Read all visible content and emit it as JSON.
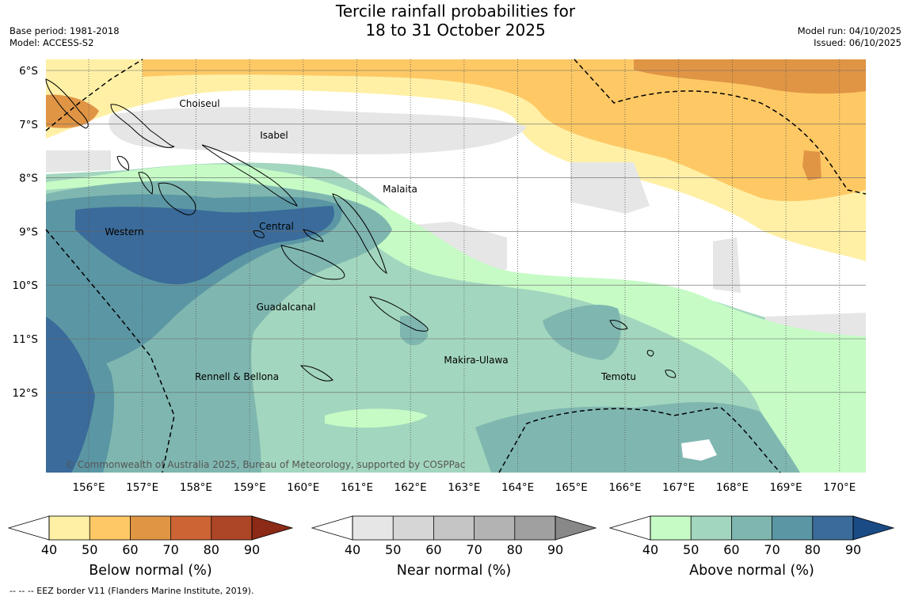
{
  "title_line1": "Tercile rainfall probabilities for",
  "title_line2": "18 to 31 October 2025",
  "meta_left": {
    "line1": "Base period: 1981-2018",
    "line2": "Model: ACCESS-S2"
  },
  "meta_right": {
    "line1": "Model run: 04/10/2025",
    "line2": "Issued: 06/10/2025"
  },
  "lat_labels": [
    "6°S",
    "7°S",
    "8°S",
    "9°S",
    "10°S",
    "11°S",
    "12°S"
  ],
  "lon_labels": [
    "156°E",
    "157°E",
    "158°E",
    "159°E",
    "160°E",
    "161°E",
    "162°E",
    "163°E",
    "164°E",
    "165°E",
    "166°E",
    "167°E",
    "168°E",
    "169°E",
    "170°E"
  ],
  "places": {
    "choiseul": "Choiseul",
    "isabel": "Isabel",
    "malaita": "Malaita",
    "western": "Western",
    "central": "Central",
    "guadalcanal": "Guadalcanal",
    "makira": "Makira-Ulawa",
    "temotu": "Temotu",
    "rennell": "Rennell & Bellona"
  },
  "copyright": "© Commonwealth of Australia 2025, Bureau of Meteorology, supported by COSPPac",
  "colorbars": {
    "below": {
      "title": "Below normal (%)",
      "ticks": [
        "40",
        "50",
        "60",
        "70",
        "80",
        "90"
      ],
      "colors": [
        "#fff0a6",
        "#fec965",
        "#e09545",
        "#cc6433",
        "#ad4626",
        "#8b2a16"
      ]
    },
    "near": {
      "title": "Near normal (%)",
      "ticks": [
        "40",
        "50",
        "60",
        "70",
        "80",
        "90"
      ],
      "colors": [
        "#e6e6e6",
        "#d6d6d6",
        "#c5c5c5",
        "#b3b3b3",
        "#a0a0a0",
        "#888888"
      ]
    },
    "above": {
      "title": "Above normal (%)",
      "ticks": [
        "40",
        "50",
        "60",
        "70",
        "80",
        "90"
      ],
      "colors": [
        "#c6fbc6",
        "#a3d6be",
        "#7fb7b0",
        "#5b96a4",
        "#3a6b9a",
        "#1a4b85"
      ]
    }
  },
  "footer": "--  --  -- EEZ border V11 (Flanders Marine Institute, 2019)."
}
